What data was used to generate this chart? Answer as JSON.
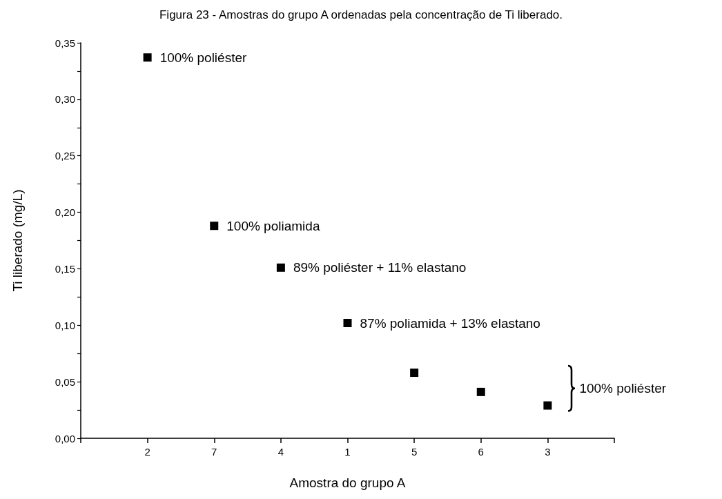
{
  "chart_data": {
    "type": "scatter",
    "title": "Figura 23 - Amostras do grupo A ordenadas pela concentração de Ti liberado.",
    "xlabel": "Amostra do grupo A",
    "ylabel": "Ti liberado (mg/L)",
    "categories": [
      null,
      "2",
      "7",
      "4",
      "1",
      "5",
      "6",
      "3",
      null
    ],
    "series": [
      {
        "color": "#000000",
        "values": [
          null,
          0.337,
          0.188,
          0.151,
          0.102,
          0.058,
          0.041,
          0.029,
          null
        ]
      }
    ],
    "ylim": [
      0,
      0.35
    ],
    "yticks": [
      {
        "value": 0,
        "label": "0,00"
      },
      {
        "value": 0.025,
        "label": null
      },
      {
        "value": 0.05,
        "label": "0,05"
      },
      {
        "value": 0.075,
        "label": null
      },
      {
        "value": 0.1,
        "label": "0,10"
      },
      {
        "value": 0.125,
        "label": null
      },
      {
        "value": 0.15,
        "label": "0,15"
      },
      {
        "value": 0.175,
        "label": null
      },
      {
        "value": 0.2,
        "label": "0,20"
      },
      {
        "value": 0.225,
        "label": null
      },
      {
        "value": 0.25,
        "label": "0,25"
      },
      {
        "value": 0.275,
        "label": null
      },
      {
        "value": 0.3,
        "label": "0,30"
      },
      {
        "value": 0.325,
        "label": null
      },
      {
        "value": 0.35,
        "label": "0,35"
      }
    ],
    "annotations": [
      {
        "text": "100% poliéster",
        "x": "2",
        "y": 0.337
      },
      {
        "text": "100% poliamida",
        "x": "7",
        "y": 0.188
      },
      {
        "text": "89% poliéster + 11% elastano",
        "x": "4",
        "y": 0.151
      },
      {
        "text": "87% poliamida + 13% elastano",
        "x": "1",
        "y": 0.102
      },
      "100% poliéster"
    ],
    "marker": "square"
  }
}
